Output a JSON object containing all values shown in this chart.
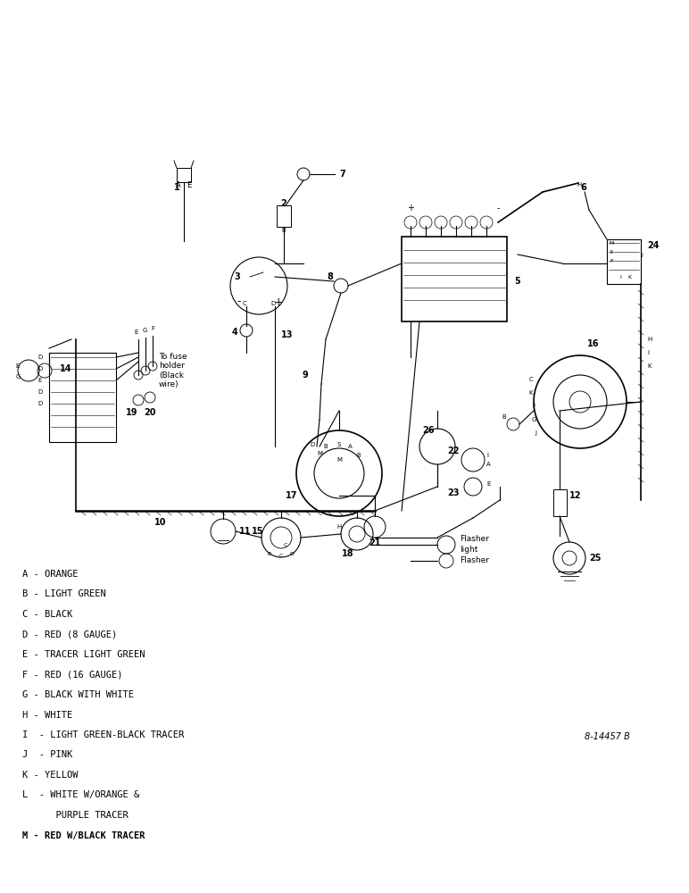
{
  "background_color": "#ffffff",
  "figsize": [
    7.72,
    10.0
  ],
  "dpi": 100,
  "legend_items": [
    "A - ORANGE",
    "B - LIGHT GREEN",
    "C - BLACK",
    "D - RED (8 GAUGE)",
    "E - TRACER LIGHT GREEN",
    "F - RED (16 GAUGE)",
    "G - BLACK WITH WHITE",
    "H - WHITE",
    "I  - LIGHT GREEN-BLACK TRACER",
    "J  - PINK",
    "K - YELLOW",
    "L  - WHITE W/ORANGE &",
    "      PURPLE TRACER",
    "M - RED W/BLACK TRACER"
  ],
  "note_bottom_right": "8-14457 B"
}
